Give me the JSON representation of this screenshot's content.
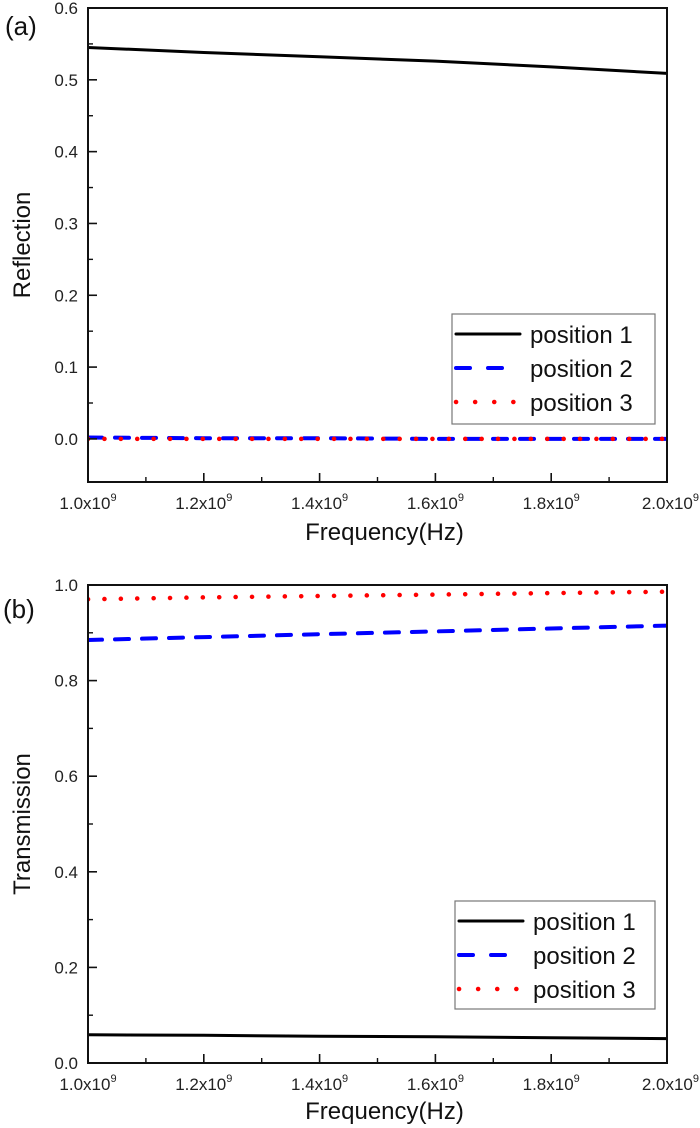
{
  "chart_data": [
    {
      "type": "line",
      "panel_label": "(a)",
      "title": "",
      "xlabel": "Frequency(Hz)",
      "ylabel": "Reflection",
      "xlim": [
        1000000000.0,
        2000000000.0
      ],
      "ylim": [
        -0.06,
        0.6
      ],
      "x_ticks": [
        1000000000.0,
        1200000000.0,
        1400000000.0,
        1600000000.0,
        1800000000.0,
        2000000000.0
      ],
      "x_tick_labels": [
        {
          "mantissa": "1.0x10",
          "exp": "9"
        },
        {
          "mantissa": "1.2x10",
          "exp": "9"
        },
        {
          "mantissa": "1.4x10",
          "exp": "9"
        },
        {
          "mantissa": "1.6x10",
          "exp": "9"
        },
        {
          "mantissa": "1.8x10",
          "exp": "9"
        },
        {
          "mantissa": "2.0x10",
          "exp": "9"
        }
      ],
      "y_ticks": [
        0.0,
        0.1,
        0.2,
        0.3,
        0.4,
        0.5,
        0.6
      ],
      "y_tick_labels": [
        "0.0",
        "0.1",
        "0.2",
        "0.3",
        "0.4",
        "0.5",
        "0.6"
      ],
      "grid": false,
      "legend_position": "bottom-right",
      "x": [
        1000000000.0,
        1200000000.0,
        1400000000.0,
        1600000000.0,
        1800000000.0,
        2000000000.0
      ],
      "series": [
        {
          "name": "position 1",
          "color": "#000000",
          "style": "solid",
          "values": [
            0.545,
            0.538,
            0.532,
            0.526,
            0.518,
            0.509
          ]
        },
        {
          "name": "position 2",
          "color": "#0000ff",
          "style": "dash",
          "values": [
            0.002,
            0.001,
            0.001,
            0.0,
            0.0,
            0.0
          ]
        },
        {
          "name": "position 3",
          "color": "#ff0000",
          "style": "dot",
          "values": [
            0.0,
            0.0,
            0.0,
            0.0,
            0.0,
            0.0
          ]
        }
      ]
    },
    {
      "type": "line",
      "panel_label": "(b)",
      "title": "",
      "xlabel": "Frequency(Hz)",
      "ylabel": "Transmission",
      "xlim": [
        1000000000.0,
        2000000000.0
      ],
      "ylim": [
        0.0,
        1.0
      ],
      "x_ticks": [
        1000000000.0,
        1200000000.0,
        1400000000.0,
        1600000000.0,
        1800000000.0,
        2000000000.0
      ],
      "x_tick_labels": [
        {
          "mantissa": "1.0x10",
          "exp": "9"
        },
        {
          "mantissa": "1.2x10",
          "exp": "9"
        },
        {
          "mantissa": "1.4x10",
          "exp": "9"
        },
        {
          "mantissa": "1.6x10",
          "exp": "9"
        },
        {
          "mantissa": "1.8x10",
          "exp": "9"
        },
        {
          "mantissa": "2.0x10",
          "exp": "9"
        }
      ],
      "y_ticks": [
        0.0,
        0.2,
        0.4,
        0.6,
        0.8,
        1.0
      ],
      "y_tick_labels": [
        "0.0",
        "0.2",
        "0.4",
        "0.6",
        "0.8",
        "1.0"
      ],
      "grid": false,
      "legend_position": "bottom-right",
      "x": [
        1000000000.0,
        1200000000.0,
        1400000000.0,
        1600000000.0,
        1800000000.0,
        2000000000.0
      ],
      "series": [
        {
          "name": "position 1",
          "color": "#000000",
          "style": "solid",
          "values": [
            0.059,
            0.058,
            0.056,
            0.055,
            0.053,
            0.051
          ]
        },
        {
          "name": "position 2",
          "color": "#0000ff",
          "style": "dash",
          "values": [
            0.885,
            0.891,
            0.897,
            0.903,
            0.909,
            0.915
          ]
        },
        {
          "name": "position 3",
          "color": "#ff0000",
          "style": "dot",
          "values": [
            0.97,
            0.974,
            0.977,
            0.98,
            0.983,
            0.986
          ]
        }
      ]
    }
  ]
}
